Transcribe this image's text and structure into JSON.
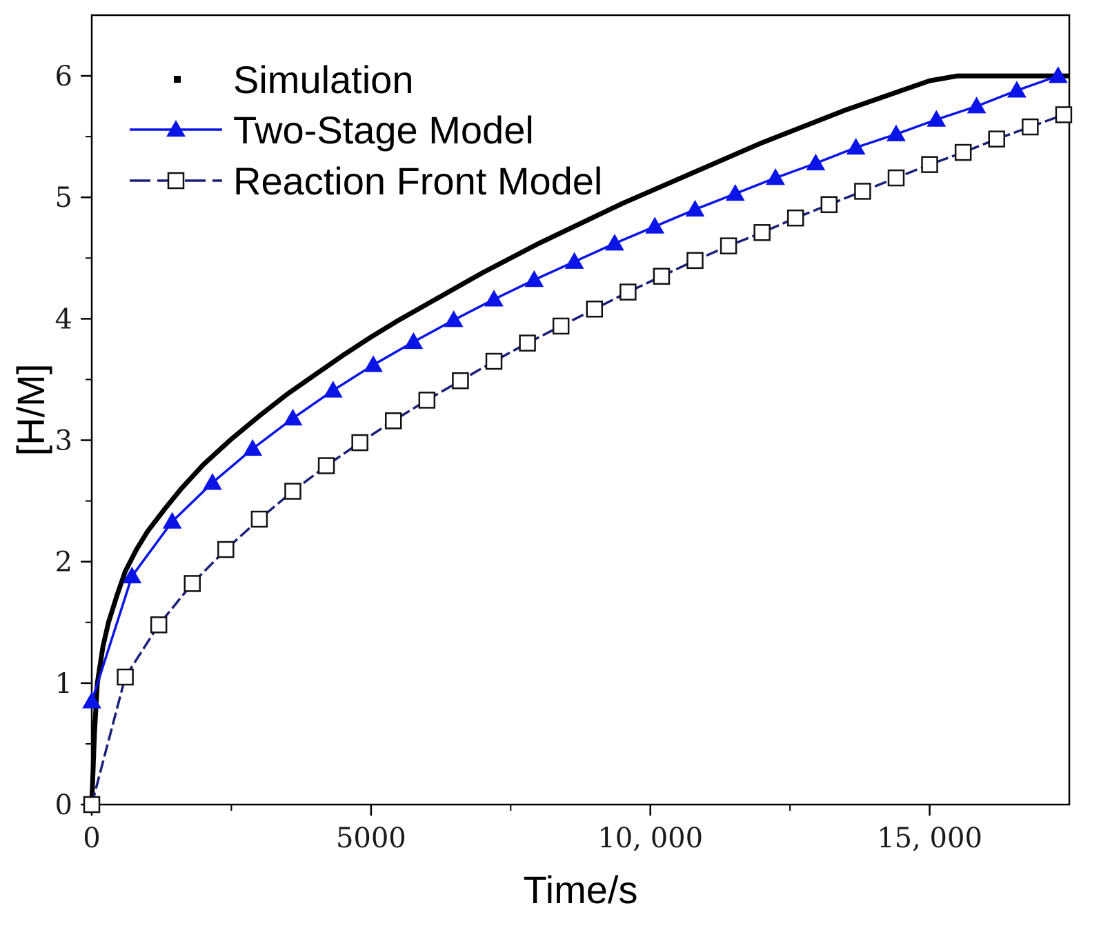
{
  "chart_data": {
    "type": "line",
    "xlabel": "Time/s",
    "ylabel": "[H/M]",
    "xlim": [
      0,
      17500
    ],
    "ylim": [
      0,
      6.5
    ],
    "x_ticks": [
      0,
      5000,
      10000,
      15000
    ],
    "x_tick_labels": [
      "0",
      "5000",
      "10, 000",
      "15, 000"
    ],
    "y_ticks": [
      0,
      1,
      2,
      3,
      4,
      5,
      6
    ],
    "y_tick_labels": [
      "0",
      "1",
      "2",
      "3",
      "4",
      "5",
      "6"
    ],
    "grid": false,
    "legend_position": "top-left",
    "series": [
      {
        "name": "Simulation",
        "style": "dotted",
        "color": "#000000",
        "marker": "dot",
        "x": [
          0,
          50,
          100,
          200,
          300,
          450,
          600,
          800,
          1000,
          1300,
          1600,
          2000,
          2500,
          3000,
          3500,
          4000,
          4500,
          5000,
          5500,
          6000,
          6500,
          7000,
          7500,
          8000,
          8500,
          9000,
          9500,
          10000,
          10500,
          11000,
          11500,
          12000,
          12500,
          13000,
          13500,
          14000,
          14500,
          15000,
          15500,
          16000,
          16500,
          17000,
          17500
        ],
        "y": [
          0.0,
          0.6,
          1.0,
          1.3,
          1.5,
          1.72,
          1.92,
          2.1,
          2.25,
          2.43,
          2.6,
          2.8,
          3.01,
          3.2,
          3.38,
          3.54,
          3.7,
          3.85,
          3.99,
          4.12,
          4.25,
          4.38,
          4.5,
          4.62,
          4.73,
          4.84,
          4.95,
          5.05,
          5.15,
          5.25,
          5.35,
          5.45,
          5.54,
          5.63,
          5.72,
          5.8,
          5.88,
          5.96,
          6.0,
          6.0,
          6.0,
          6.0,
          6.0
        ]
      },
      {
        "name": "Two-Stage Model",
        "style": "solid",
        "color": "#0a14e6",
        "marker": "triangle",
        "x": [
          0,
          720,
          1440,
          2160,
          2880,
          3600,
          4320,
          5040,
          5760,
          6480,
          7200,
          7920,
          8640,
          9360,
          10080,
          10800,
          11520,
          12240,
          12960,
          13680,
          14400,
          15120,
          15840,
          16560,
          17300
        ],
        "y": [
          0.85,
          1.88,
          2.33,
          2.65,
          2.93,
          3.18,
          3.41,
          3.62,
          3.81,
          3.99,
          4.16,
          4.32,
          4.47,
          4.62,
          4.76,
          4.9,
          5.03,
          5.16,
          5.28,
          5.41,
          5.52,
          5.64,
          5.75,
          5.88,
          6.0
        ]
      },
      {
        "name": "Reaction Front Model",
        "style": "dashed",
        "color": "#1a1f7a",
        "marker": "square",
        "x": [
          0,
          600,
          1200,
          1800,
          2400,
          3000,
          3600,
          4200,
          4800,
          5400,
          6000,
          6600,
          7200,
          7800,
          8400,
          9000,
          9600,
          10200,
          10800,
          11400,
          12000,
          12600,
          13200,
          13800,
          14400,
          15000,
          15600,
          16200,
          16800,
          17400
        ],
        "y": [
          0.0,
          1.05,
          1.48,
          1.82,
          2.1,
          2.35,
          2.58,
          2.79,
          2.98,
          3.16,
          3.33,
          3.49,
          3.65,
          3.8,
          3.94,
          4.08,
          4.22,
          4.35,
          4.48,
          4.6,
          4.71,
          4.83,
          4.94,
          5.05,
          5.16,
          5.27,
          5.37,
          5.48,
          5.58,
          5.68
        ]
      }
    ]
  }
}
